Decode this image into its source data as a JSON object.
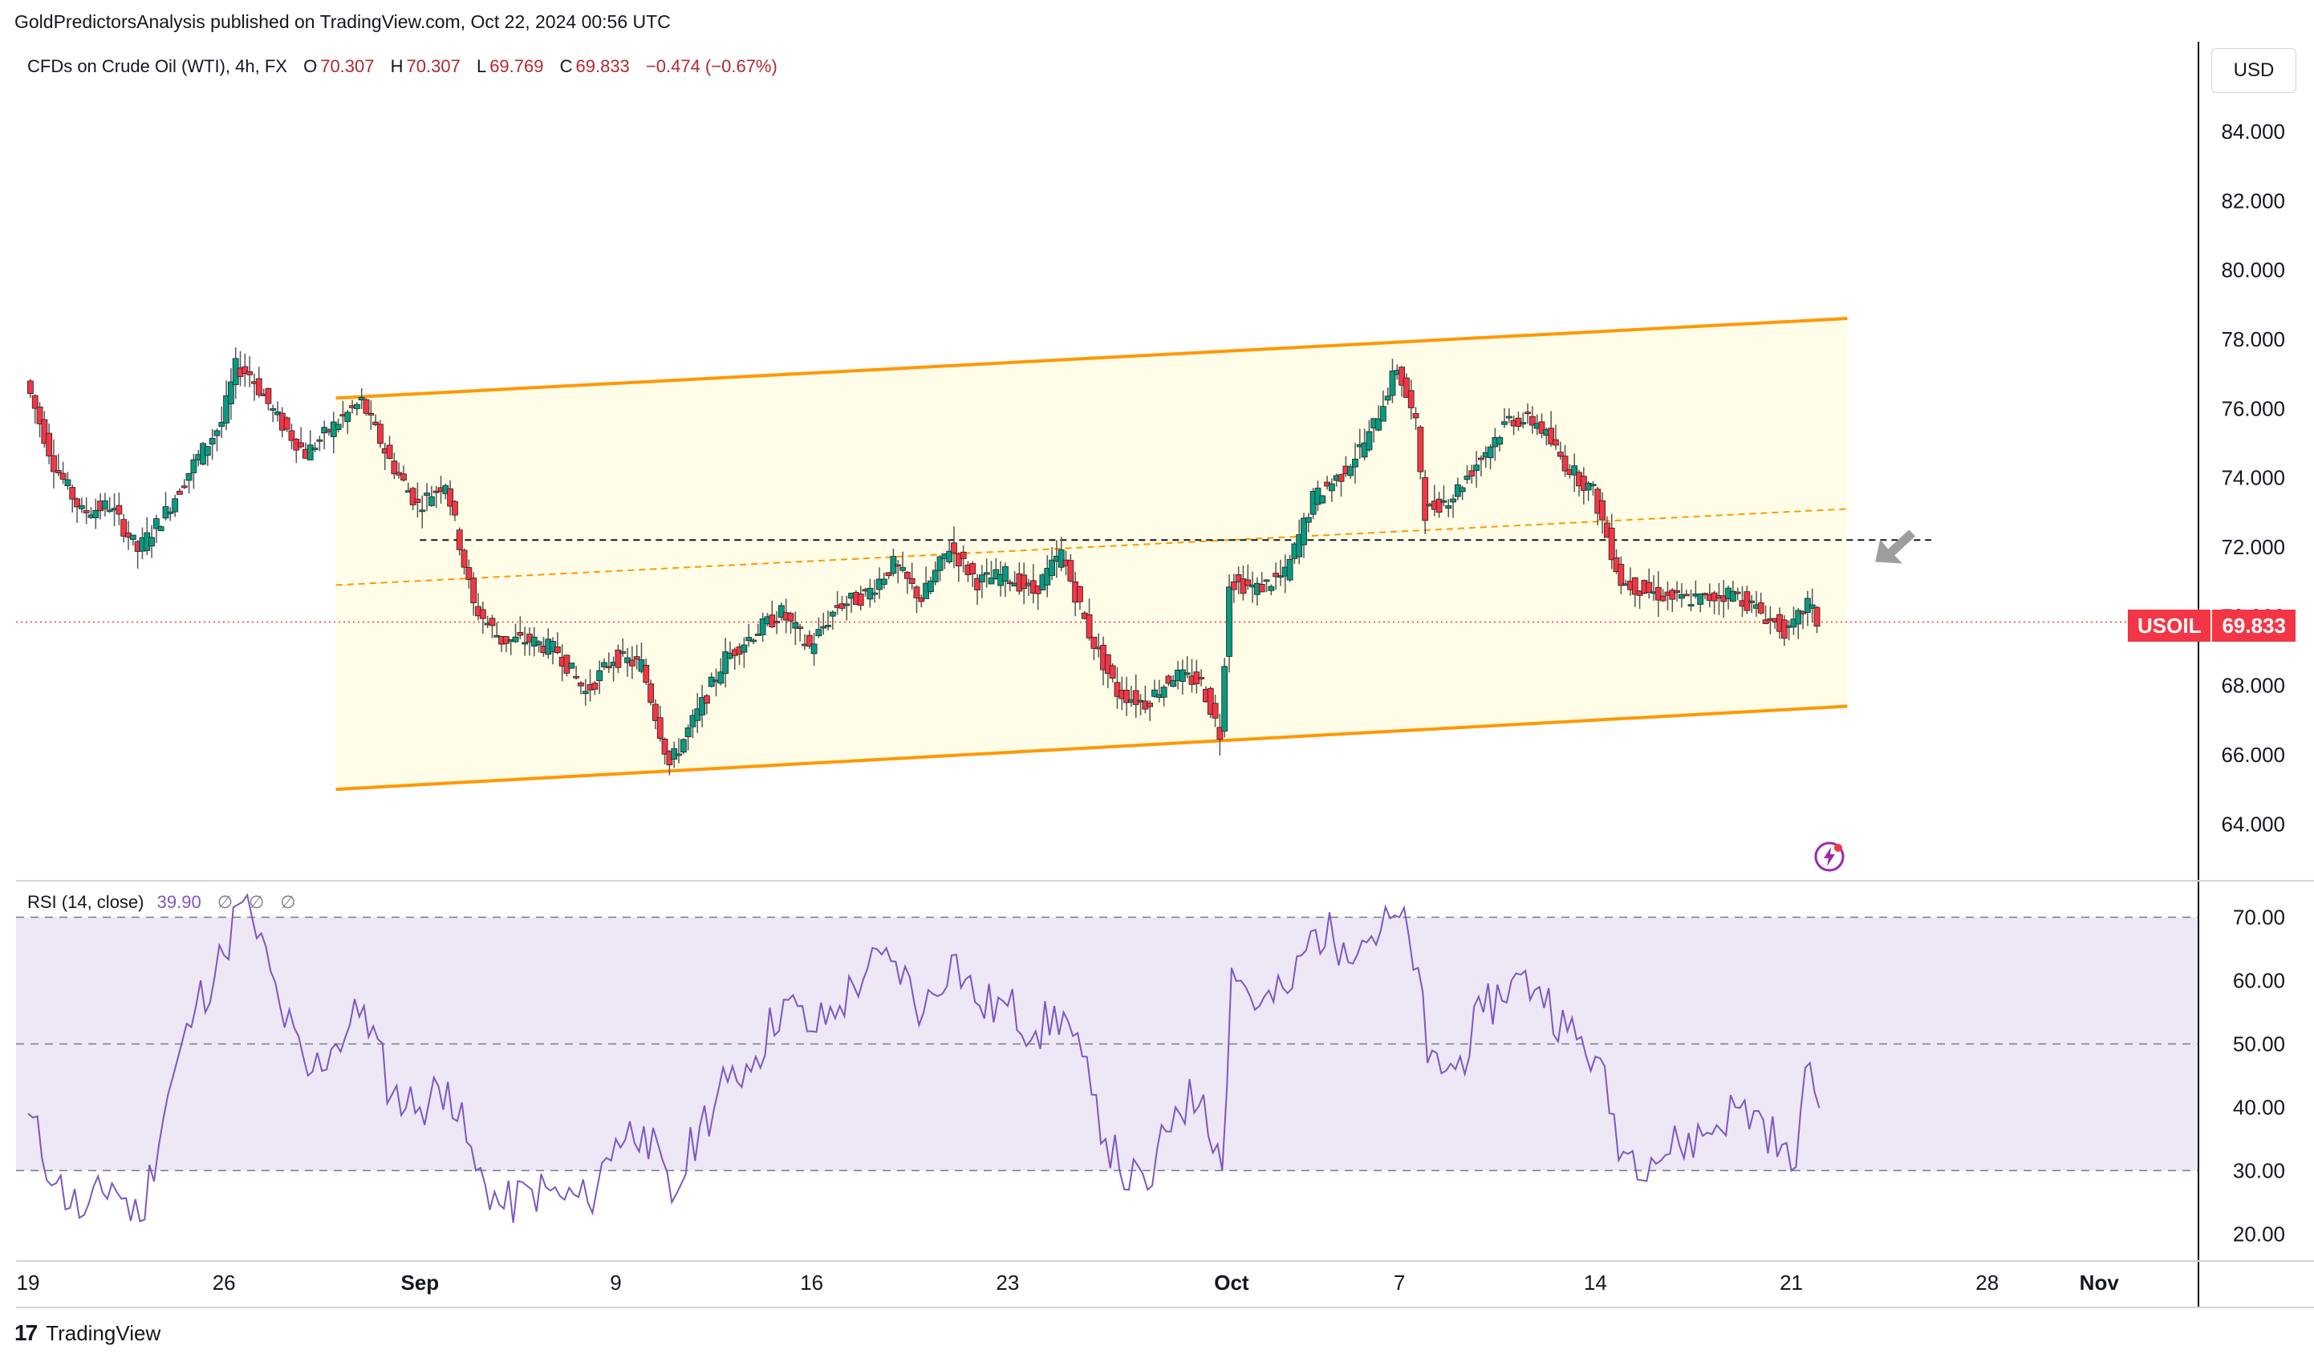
{
  "header": {
    "publisher": "GoldPredictorsAnalysis published on TradingView.com, Oct 22, 2024 00:56 UTC",
    "instrument": "CFDs on Crude Oil (WTI), 4h, FX",
    "ohlc": [
      {
        "label": "O",
        "value": "70.307"
      },
      {
        "label": "H",
        "value": "70.307"
      },
      {
        "label": "L",
        "value": "69.769"
      },
      {
        "label": "C",
        "value": "69.833"
      }
    ],
    "change": "−0.474 (−0.67%)",
    "currency": "USD"
  },
  "price_tag": {
    "symbol": "USOIL",
    "value": "69.833"
  },
  "rsi_header": {
    "label": "RSI (14, close)",
    "value": "39.90",
    "na": [
      "∅",
      "∅",
      "∅"
    ]
  },
  "footer": {
    "brand": "TradingView",
    "logo": "17"
  },
  "icons": {
    "flash": "lightning-icon",
    "logo": "tradingview-logo-icon"
  },
  "colors": {
    "up": "#089981",
    "down": "#f23645",
    "channel": "#ff9800",
    "channel_fill": "#fffde7",
    "rsi_line": "#7e57c2",
    "rsi_band": "#ede7f6",
    "last_price": "#f23645",
    "arrow": "#9e9e9e"
  },
  "chart_data": [
    {
      "type": "candlestick",
      "title": "CFDs on Crude Oil (WTI), 4h, FX",
      "x_type": "date",
      "xlim": [
        "2024-08-19",
        "2024-11-03"
      ],
      "ylim": [
        62.5,
        86.5
      ],
      "y_ticks": [
        "84.000",
        "82.000",
        "80.000",
        "78.000",
        "76.000",
        "74.000",
        "72.000",
        "70.000",
        "68.000",
        "66.000",
        "64.000"
      ],
      "x_ticks": [
        {
          "label": "19",
          "x": "2024-08-19"
        },
        {
          "label": "26",
          "x": "2024-08-26"
        },
        {
          "label": "Sep",
          "x": "2024-09-02",
          "bold": true
        },
        {
          "label": "9",
          "x": "2024-09-09"
        },
        {
          "label": "16",
          "x": "2024-09-16"
        },
        {
          "label": "23",
          "x": "2024-09-23"
        },
        {
          "label": "Oct",
          "x": "2024-10-01",
          "bold": true
        },
        {
          "label": "7",
          "x": "2024-10-07"
        },
        {
          "label": "14",
          "x": "2024-10-14"
        },
        {
          "label": "21",
          "x": "2024-10-21"
        },
        {
          "label": "28",
          "x": "2024-10-28"
        },
        {
          "label": "Nov",
          "x": "2024-11-01",
          "bold": true
        }
      ],
      "anchor_points": [
        {
          "x": "2024-08-19",
          "y": 76.8
        },
        {
          "x": "2024-08-20",
          "y": 74.4
        },
        {
          "x": "2024-08-21",
          "y": 73.0
        },
        {
          "x": "2024-08-22",
          "y": 73.2
        },
        {
          "x": "2024-08-23",
          "y": 71.9
        },
        {
          "x": "2024-08-24",
          "y": 73.0
        },
        {
          "x": "2024-08-25",
          "y": 74.4
        },
        {
          "x": "2024-08-26",
          "y": 75.6
        },
        {
          "x": "2024-08-26T12:00",
          "y": 77.2
        },
        {
          "x": "2024-08-27",
          "y": 77.0
        },
        {
          "x": "2024-08-28",
          "y": 75.7
        },
        {
          "x": "2024-08-29",
          "y": 74.7
        },
        {
          "x": "2024-08-30",
          "y": 75.5
        },
        {
          "x": "2024-08-31",
          "y": 76.2
        },
        {
          "x": "2024-09-01",
          "y": 74.5
        },
        {
          "x": "2024-09-02",
          "y": 73.2
        },
        {
          "x": "2024-09-03",
          "y": 73.9
        },
        {
          "x": "2024-09-04",
          "y": 70.3
        },
        {
          "x": "2024-09-05",
          "y": 69.3
        },
        {
          "x": "2024-09-06",
          "y": 69.3
        },
        {
          "x": "2024-09-07",
          "y": 69.0
        },
        {
          "x": "2024-09-08",
          "y": 67.8
        },
        {
          "x": "2024-09-09",
          "y": 68.8
        },
        {
          "x": "2024-09-10",
          "y": 68.6
        },
        {
          "x": "2024-09-11",
          "y": 65.7
        },
        {
          "x": "2024-09-12",
          "y": 67.2
        },
        {
          "x": "2024-09-13",
          "y": 68.8
        },
        {
          "x": "2024-09-14",
          "y": 69.5
        },
        {
          "x": "2024-09-15",
          "y": 70.1
        },
        {
          "x": "2024-09-16",
          "y": 69.1
        },
        {
          "x": "2024-09-17",
          "y": 70.3
        },
        {
          "x": "2024-09-18",
          "y": 70.6
        },
        {
          "x": "2024-09-19",
          "y": 71.5
        },
        {
          "x": "2024-09-20",
          "y": 70.5
        },
        {
          "x": "2024-09-21",
          "y": 72.0
        },
        {
          "x": "2024-09-22",
          "y": 71.0
        },
        {
          "x": "2024-09-23",
          "y": 71.2
        },
        {
          "x": "2024-09-24",
          "y": 70.7
        },
        {
          "x": "2024-09-25",
          "y": 71.8
        },
        {
          "x": "2024-09-26",
          "y": 69.5
        },
        {
          "x": "2024-09-27",
          "y": 67.8
        },
        {
          "x": "2024-09-28",
          "y": 67.5
        },
        {
          "x": "2024-09-29",
          "y": 68.3
        },
        {
          "x": "2024-09-30",
          "y": 68.1
        },
        {
          "x": "2024-09-30T16:00",
          "y": 66.6
        },
        {
          "x": "2024-10-01",
          "y": 71.0
        },
        {
          "x": "2024-10-02",
          "y": 70.8
        },
        {
          "x": "2024-10-03",
          "y": 71.2
        },
        {
          "x": "2024-10-04",
          "y": 73.4
        },
        {
          "x": "2024-10-05",
          "y": 74.1
        },
        {
          "x": "2024-10-06",
          "y": 75.2
        },
        {
          "x": "2024-10-07",
          "y": 77.2
        },
        {
          "x": "2024-10-07T16:00",
          "y": 75.5
        },
        {
          "x": "2024-10-08",
          "y": 73.0
        },
        {
          "x": "2024-10-09",
          "y": 73.5
        },
        {
          "x": "2024-10-10",
          "y": 74.6
        },
        {
          "x": "2024-10-11",
          "y": 75.7
        },
        {
          "x": "2024-10-12",
          "y": 75.6
        },
        {
          "x": "2024-10-13",
          "y": 74.4
        },
        {
          "x": "2024-10-14",
          "y": 73.6
        },
        {
          "x": "2024-10-15",
          "y": 71.0
        },
        {
          "x": "2024-10-16",
          "y": 70.7
        },
        {
          "x": "2024-10-17",
          "y": 70.5
        },
        {
          "x": "2024-10-18",
          "y": 70.5
        },
        {
          "x": "2024-10-19",
          "y": 70.7
        },
        {
          "x": "2024-10-20",
          "y": 70.1
        },
        {
          "x": "2024-10-21",
          "y": 69.5
        },
        {
          "x": "2024-10-21T16:00",
          "y": 70.4
        },
        {
          "x": "2024-10-22",
          "y": 69.833
        }
      ],
      "last_price": 69.833,
      "channel": {
        "upper": [
          {
            "x": "2024-08-30",
            "y": 76.3
          },
          {
            "x": "2024-10-23",
            "y": 78.6
          }
        ],
        "lower": [
          {
            "x": "2024-08-30",
            "y": 65.0
          },
          {
            "x": "2024-10-23",
            "y": 67.4
          }
        ],
        "mid": [
          {
            "x": "2024-08-30",
            "y": 70.9
          },
          {
            "x": "2024-10-23",
            "y": 73.1
          }
        ]
      },
      "horizontal_line": {
        "from": "2024-09-02",
        "to": "2024-10-26",
        "y": 72.2
      },
      "arrow_at": {
        "x": "2024-10-24",
        "y": 71.8
      }
    },
    {
      "type": "line",
      "title": "RSI (14, close)",
      "x_type": "date",
      "xlim": [
        "2024-08-19",
        "2024-11-03"
      ],
      "ylim": [
        16,
        75
      ],
      "y_ticks": [
        "70.00",
        "60.00",
        "50.00",
        "40.00",
        "30.00",
        "20.00"
      ],
      "levels": [
        70,
        50,
        30
      ],
      "series": [
        {
          "values": [
            {
              "x": "2024-08-19",
              "y": 39
            },
            {
              "x": "2024-08-20",
              "y": 28
            },
            {
              "x": "2024-08-21",
              "y": 23
            },
            {
              "x": "2024-08-22",
              "y": 28
            },
            {
              "x": "2024-08-23",
              "y": 22
            },
            {
              "x": "2024-08-24",
              "y": 42
            },
            {
              "x": "2024-08-25",
              "y": 56
            },
            {
              "x": "2024-08-26",
              "y": 64
            },
            {
              "x": "2024-08-26T12:00",
              "y": 72
            },
            {
              "x": "2024-08-27",
              "y": 70
            },
            {
              "x": "2024-08-28",
              "y": 56
            },
            {
              "x": "2024-08-29",
              "y": 45
            },
            {
              "x": "2024-08-30",
              "y": 50
            },
            {
              "x": "2024-08-31",
              "y": 56
            },
            {
              "x": "2024-09-01",
              "y": 42
            },
            {
              "x": "2024-09-02",
              "y": 40
            },
            {
              "x": "2024-09-03",
              "y": 44
            },
            {
              "x": "2024-09-04",
              "y": 30
            },
            {
              "x": "2024-09-05",
              "y": 24
            },
            {
              "x": "2024-09-06",
              "y": 27
            },
            {
              "x": "2024-09-07",
              "y": 26
            },
            {
              "x": "2024-09-08",
              "y": 25
            },
            {
              "x": "2024-09-09",
              "y": 35
            },
            {
              "x": "2024-09-10",
              "y": 37
            },
            {
              "x": "2024-09-11",
              "y": 25
            },
            {
              "x": "2024-09-12",
              "y": 37
            },
            {
              "x": "2024-09-13",
              "y": 44
            },
            {
              "x": "2024-09-14",
              "y": 48
            },
            {
              "x": "2024-09-15",
              "y": 57
            },
            {
              "x": "2024-09-16",
              "y": 52
            },
            {
              "x": "2024-09-17",
              "y": 56
            },
            {
              "x": "2024-09-18",
              "y": 62
            },
            {
              "x": "2024-09-19",
              "y": 63
            },
            {
              "x": "2024-09-20",
              "y": 55
            },
            {
              "x": "2024-09-21",
              "y": 64
            },
            {
              "x": "2024-09-22",
              "y": 56
            },
            {
              "x": "2024-09-23",
              "y": 56
            },
            {
              "x": "2024-09-24",
              "y": 52
            },
            {
              "x": "2024-09-25",
              "y": 55
            },
            {
              "x": "2024-09-26",
              "y": 42
            },
            {
              "x": "2024-09-27",
              "y": 30
            },
            {
              "x": "2024-09-28",
              "y": 27
            },
            {
              "x": "2024-09-29",
              "y": 40
            },
            {
              "x": "2024-09-30",
              "y": 42
            },
            {
              "x": "2024-09-30T16:00",
              "y": 30
            },
            {
              "x": "2024-10-01",
              "y": 62
            },
            {
              "x": "2024-10-02",
              "y": 56
            },
            {
              "x": "2024-10-03",
              "y": 58
            },
            {
              "x": "2024-10-04",
              "y": 68
            },
            {
              "x": "2024-10-05",
              "y": 66
            },
            {
              "x": "2024-10-06",
              "y": 67
            },
            {
              "x": "2024-10-07",
              "y": 70
            },
            {
              "x": "2024-10-07T16:00",
              "y": 62
            },
            {
              "x": "2024-10-08",
              "y": 47
            },
            {
              "x": "2024-10-09",
              "y": 46
            },
            {
              "x": "2024-10-10",
              "y": 55
            },
            {
              "x": "2024-10-11",
              "y": 60
            },
            {
              "x": "2024-10-12",
              "y": 59
            },
            {
              "x": "2024-10-13",
              "y": 52
            },
            {
              "x": "2024-10-14",
              "y": 48
            },
            {
              "x": "2024-10-15",
              "y": 33
            },
            {
              "x": "2024-10-16",
              "y": 32
            },
            {
              "x": "2024-10-17",
              "y": 34
            },
            {
              "x": "2024-10-18",
              "y": 36
            },
            {
              "x": "2024-10-19",
              "y": 40
            },
            {
              "x": "2024-10-20",
              "y": 38
            },
            {
              "x": "2024-10-21",
              "y": 30
            },
            {
              "x": "2024-10-21T16:00",
              "y": 47
            },
            {
              "x": "2024-10-22",
              "y": 39.9
            }
          ]
        }
      ]
    }
  ]
}
